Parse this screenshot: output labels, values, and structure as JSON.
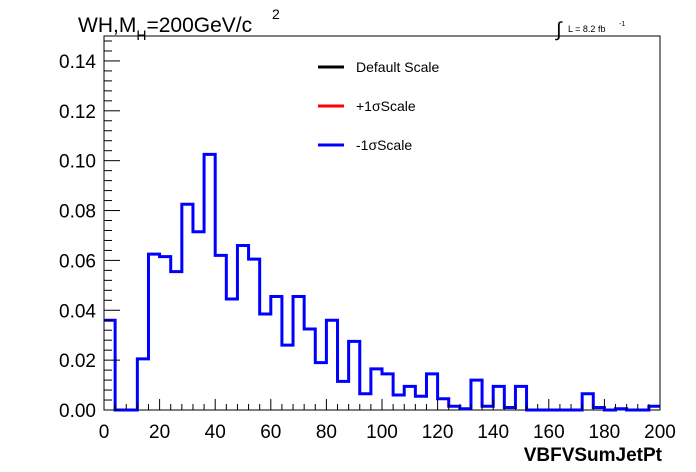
{
  "chart_data": {
    "type": "line",
    "title_main": "WH,M",
    "title_sub": "H",
    "title_rest": "=200GeV/c",
    "title_sup": "2",
    "lumi_prefix": "∫",
    "lumi_text": "L = 8.2 fb",
    "lumi_sup": "-1",
    "xlabel": "VBFVSumJetPt",
    "xlim": [
      0,
      200
    ],
    "ylim": [
      0,
      0.15
    ],
    "x_ticks": [
      "0",
      "20",
      "40",
      "60",
      "80",
      "100",
      "120",
      "140",
      "160",
      "180",
      "200"
    ],
    "y_ticks": [
      "0.00",
      "0.02",
      "0.04",
      "0.06",
      "0.08",
      "0.10",
      "0.12",
      "0.14"
    ],
    "bin_width": 4,
    "bin_edges_start": 0,
    "legend": [
      {
        "label": "Default Scale",
        "color": "#000000"
      },
      {
        "label": "+1σScale",
        "color": "#ff0000"
      },
      {
        "label": "-1σScale",
        "color": "#0000ff"
      }
    ],
    "series": [
      {
        "name": "-1σScale",
        "color": "#0000ff",
        "values": [
          0.036,
          0.0,
          0.0,
          0.0205,
          0.0625,
          0.0615,
          0.0555,
          0.0825,
          0.0715,
          0.1025,
          0.062,
          0.0445,
          0.066,
          0.0605,
          0.0385,
          0.0455,
          0.026,
          0.0455,
          0.0325,
          0.019,
          0.036,
          0.0115,
          0.0275,
          0.0065,
          0.0165,
          0.0145,
          0.006,
          0.0095,
          0.0055,
          0.0145,
          0.0045,
          0.0015,
          0.0005,
          0.012,
          0.0015,
          0.0095,
          0.001,
          0.0095,
          0.0,
          0.0,
          0.0,
          0.0,
          0.0,
          0.0065,
          0.001,
          0.0,
          0.0005,
          0.0,
          0.0,
          0.0015
        ]
      }
    ]
  }
}
